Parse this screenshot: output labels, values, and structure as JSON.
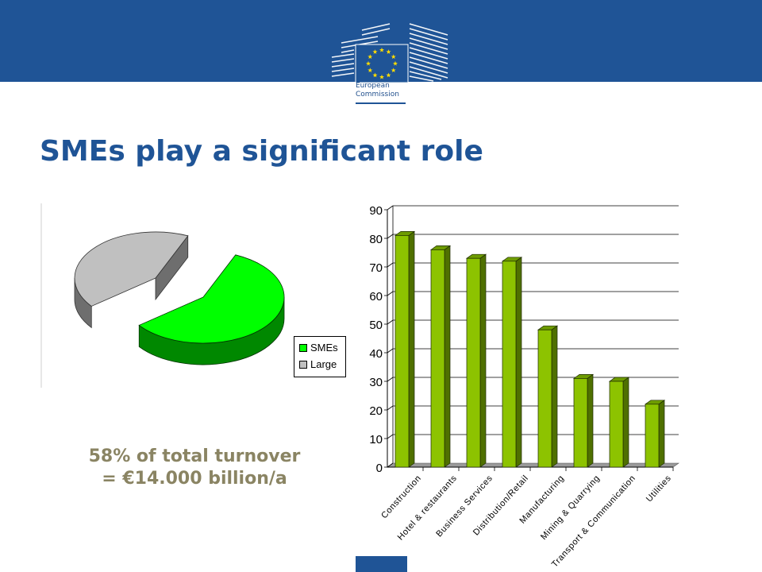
{
  "header": {
    "logo": {
      "icon": "eu-flag-building-icon",
      "line1": "European",
      "line2": "Commission"
    }
  },
  "slide": {
    "title": "SMEs play a significant role",
    "caption_line1": "58% of total turnover",
    "caption_line2": "= €14.000 billion/a"
  },
  "colors": {
    "brand_blue": "#1f5496",
    "bar_green": "#8dc300",
    "sme_green": "#00ff00",
    "large_gray": "#c0c0c0",
    "caption": "#8a8463"
  },
  "chart_data": [
    {
      "type": "pie",
      "title": "",
      "labels": [
        "SMEs",
        "Large"
      ],
      "values": [
        58,
        42
      ],
      "colors": [
        "#00ff00",
        "#c0c0c0"
      ],
      "exploded": true,
      "three_d": true,
      "legend": {
        "placement": "bottom-right",
        "entries": [
          "SMEs",
          "Large"
        ]
      }
    },
    {
      "type": "bar",
      "title": "",
      "xlabel": "",
      "ylabel": "",
      "three_d": true,
      "categories": [
        "Construction",
        "Hotel & restaurants",
        "Business Services",
        "Distribution/Retail",
        "Manufacturing",
        "Mining & Quarrying",
        "Transport & Communication",
        "Utilities"
      ],
      "values": [
        81,
        76,
        73,
        72,
        48,
        31,
        30,
        22
      ],
      "ylim": [
        0,
        90
      ],
      "yticks": [
        "0",
        "10",
        "20",
        "30",
        "40",
        "50",
        "60",
        "70",
        "80",
        "90"
      ],
      "grid": true,
      "legend": "none"
    }
  ]
}
